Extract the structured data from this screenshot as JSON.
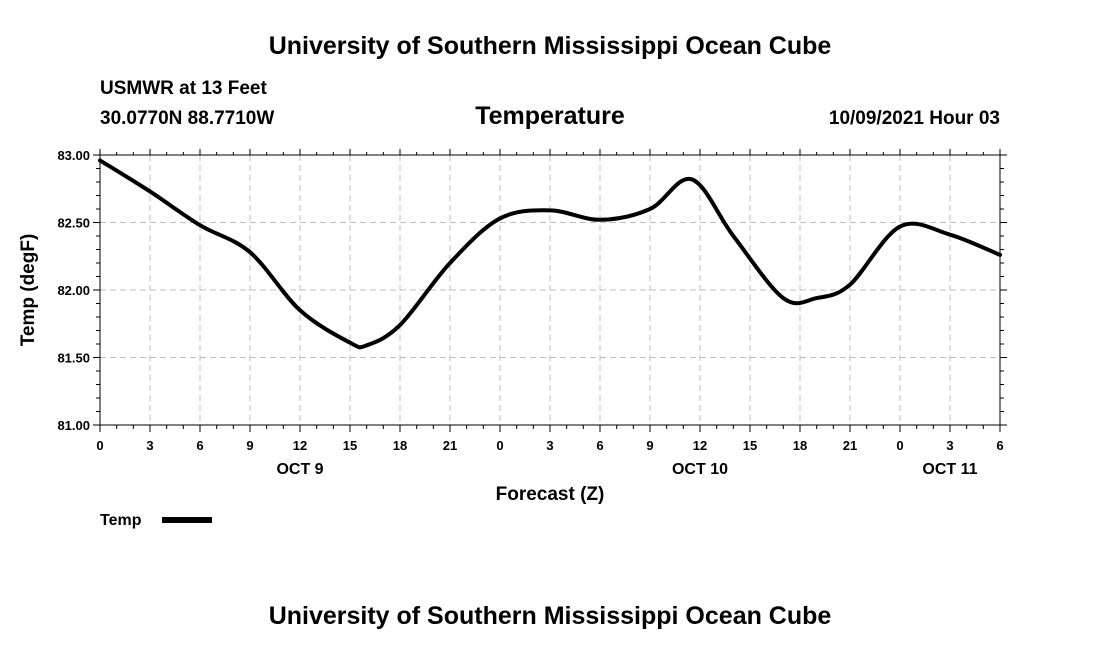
{
  "header": {
    "title_top": "University of Southern Mississippi Ocean Cube",
    "station": "USMWR at 13 Feet",
    "coords": "30.0770N  88.7710W",
    "chart_title": "Temperature",
    "datetime": "10/09/2021 Hour 03",
    "title_bottom": "University of Southern Mississippi Ocean Cube"
  },
  "legend": {
    "label": "Temp",
    "color": "#000000"
  },
  "chart_data": {
    "type": "line",
    "title": "Temperature",
    "xlabel": "Forecast (Z)",
    "ylabel": "Temp (degF)",
    "xlim": [
      0,
      54
    ],
    "ylim": [
      81.0,
      83.0
    ],
    "grid": true,
    "legend_position": "bottom-left",
    "y_ticks": [
      "81.00",
      "81.50",
      "82.00",
      "82.50",
      "83.00"
    ],
    "x_ticks": [
      "0",
      "3",
      "6",
      "9",
      "12",
      "15",
      "18",
      "21",
      "0",
      "3",
      "6",
      "9",
      "12",
      "15",
      "18",
      "21",
      "0",
      "3",
      "6"
    ],
    "x_day_labels": [
      {
        "label": "OCT 9",
        "hour": 12
      },
      {
        "label": "OCT 10",
        "hour": 36
      },
      {
        "label": "OCT 11",
        "hour": 51
      }
    ],
    "series": [
      {
        "name": "Temp",
        "color": "#000000",
        "x": [
          0,
          3,
          6,
          9,
          12,
          15,
          16,
          18,
          21,
          24,
          27,
          30,
          33,
          35.5,
          38,
          41,
          43,
          45,
          48,
          51,
          54
        ],
        "values": [
          82.96,
          82.73,
          82.48,
          82.28,
          81.85,
          81.61,
          81.59,
          81.74,
          82.2,
          82.53,
          82.59,
          82.52,
          82.6,
          82.82,
          82.4,
          81.94,
          81.94,
          82.04,
          82.47,
          82.41,
          82.26
        ]
      }
    ]
  }
}
